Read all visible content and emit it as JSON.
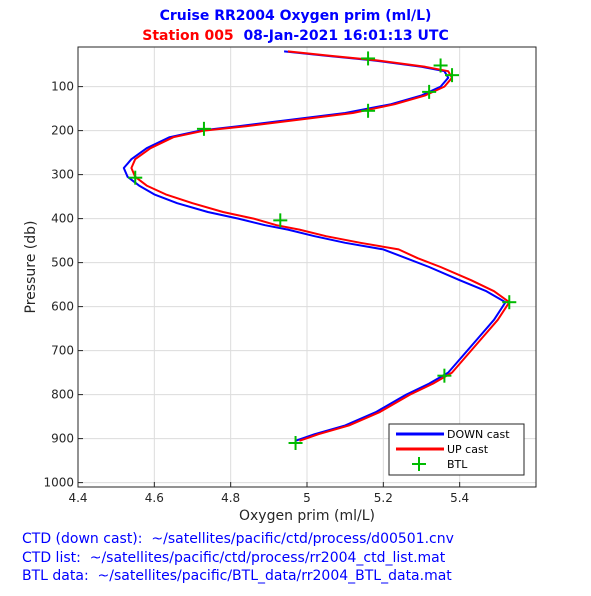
{
  "chart_data": {
    "type": "line",
    "title": "Cruise RR2004 Oxygen prim (ml/L)",
    "subtitle_station": "Station 005",
    "subtitle_datetime": "08-Jan-2021 16:01:13 UTC",
    "xlabel": "Oxygen  prim (ml/L)",
    "ylabel": "Pressure (db)",
    "xlim": [
      4.4,
      5.6
    ],
    "ylim": [
      1010,
      10
    ],
    "y_reversed": true,
    "grid": true,
    "legend_position": "bottom-right",
    "xticks": [
      "4.4",
      "4.6",
      "4.8",
      "5",
      "5.2",
      "5.4"
    ],
    "yticks": [
      "100",
      "200",
      "300",
      "400",
      "500",
      "600",
      "700",
      "800",
      "900",
      "1000"
    ],
    "colors": {
      "down": "#0000ff",
      "up": "#ff0000",
      "btl": "#00bb00"
    },
    "series": [
      {
        "name": "DOWN cast",
        "x": [
          4.94,
          5.05,
          5.17,
          5.3,
          5.36,
          5.37,
          5.35,
          5.3,
          5.22,
          5.1,
          4.96,
          4.82,
          4.72,
          4.64,
          4.58,
          4.54,
          4.52,
          4.53,
          4.56,
          4.6,
          4.66,
          4.74,
          4.82,
          4.89,
          4.95,
          5.02,
          5.1,
          5.2,
          5.26,
          5.32,
          5.4,
          5.47,
          5.52,
          5.49,
          5.45,
          5.41,
          5.37,
          5.32,
          5.26,
          5.18,
          5.1,
          5.02,
          4.97
        ],
        "y": [
          20,
          30,
          40,
          55,
          65,
          80,
          100,
          120,
          140,
          160,
          175,
          190,
          200,
          215,
          240,
          265,
          285,
          305,
          325,
          345,
          365,
          385,
          400,
          415,
          425,
          440,
          455,
          470,
          490,
          510,
          540,
          565,
          590,
          630,
          670,
          710,
          750,
          775,
          800,
          840,
          870,
          890,
          905
        ]
      },
      {
        "name": "UP cast",
        "x": [
          4.95,
          5.06,
          5.18,
          5.31,
          5.37,
          5.38,
          5.36,
          5.31,
          5.23,
          5.12,
          4.98,
          4.84,
          4.73,
          4.65,
          4.59,
          4.55,
          4.54,
          4.55,
          4.58,
          4.63,
          4.7,
          4.78,
          4.86,
          4.92,
          4.98,
          5.05,
          5.14,
          5.24,
          5.29,
          5.35,
          5.43,
          5.49,
          5.53,
          5.5,
          5.46,
          5.42,
          5.38,
          5.33,
          5.27,
          5.19,
          5.11,
          5.03,
          4.98
        ],
        "y": [
          20,
          30,
          40,
          55,
          65,
          80,
          100,
          120,
          140,
          160,
          175,
          190,
          200,
          215,
          240,
          265,
          285,
          305,
          325,
          345,
          365,
          385,
          400,
          415,
          425,
          440,
          455,
          470,
          490,
          510,
          540,
          565,
          590,
          630,
          670,
          710,
          750,
          775,
          800,
          840,
          870,
          890,
          905
        ]
      },
      {
        "name": "BTL",
        "x": [
          5.16,
          5.35,
          5.38,
          5.32,
          5.16,
          4.73,
          4.55,
          4.93,
          5.53,
          5.36,
          4.97
        ],
        "y": [
          36,
          52,
          74,
          112,
          155,
          196,
          307,
          404,
          590,
          757,
          910
        ]
      }
    ]
  },
  "footer": {
    "line1": "CTD (down cast):  ~/satellites/pacific/ctd/process/d00501.cnv",
    "line2": "CTD list:  ~/satellites/pacific/ctd/process/rr2004_ctd_list.mat",
    "line3": "BTL data:  ~/satellites/pacific/BTL_data/rr2004_BTL_data.mat"
  }
}
